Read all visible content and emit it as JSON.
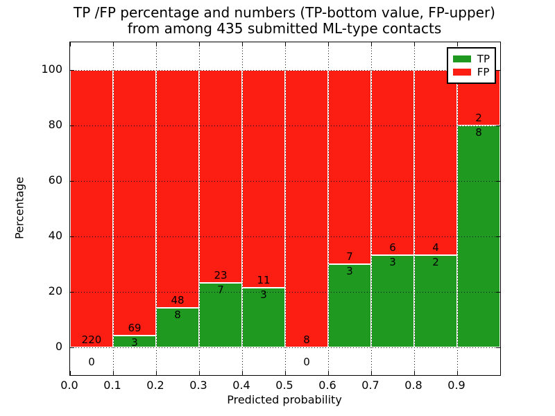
{
  "figure": {
    "title_line1": "TP /FP percentage and numbers (TP-bottom value, FP-upper)",
    "title_line2": "from among 435 submitted ML-type contacts",
    "xlabel": "Predicted probability",
    "ylabel": "Percentage"
  },
  "legend": {
    "items": [
      {
        "label": "TP",
        "color": "#1f991f"
      },
      {
        "label": "FP",
        "color": "#fc1d13"
      }
    ]
  },
  "colors": {
    "tp": "#1f991f",
    "fp": "#fc1d13",
    "grid": "#000000",
    "background": "#ffffff"
  },
  "chart_data": {
    "type": "bar",
    "stacked": true,
    "title": "TP /FP percentage and numbers (TP-bottom value, FP-upper) from among 435 submitted ML-type contacts",
    "xlabel": "Predicted probability",
    "ylabel": "Percentage",
    "xlim": [
      0.0,
      1.0
    ],
    "ylim": [
      -10,
      110
    ],
    "x_ticks": [
      "0.0",
      "0.1",
      "0.2",
      "0.3",
      "0.4",
      "0.5",
      "0.6",
      "0.7",
      "0.8",
      "0.9"
    ],
    "y_ticks": [
      0,
      20,
      40,
      60,
      80,
      100
    ],
    "grid": "dotted, drawn over bars",
    "legend_position": "upper right",
    "total_contacts": 435,
    "series": [
      {
        "name": "TP",
        "values": [
          0.0,
          4.17,
          14.29,
          23.33,
          21.43,
          0.0,
          30.0,
          33.33,
          33.33,
          80.0
        ]
      },
      {
        "name": "FP",
        "values": [
          100.0,
          95.83,
          85.71,
          76.67,
          78.57,
          100.0,
          70.0,
          66.67,
          66.67,
          20.0
        ]
      }
    ],
    "bins": [
      {
        "x_start": 0.0,
        "x_end": 0.1,
        "tp_count": 0,
        "fp_count": 220,
        "tp_pct": 0.0
      },
      {
        "x_start": 0.1,
        "x_end": 0.2,
        "tp_count": 3,
        "fp_count": 69,
        "tp_pct": 4.17
      },
      {
        "x_start": 0.2,
        "x_end": 0.3,
        "tp_count": 8,
        "fp_count": 48,
        "tp_pct": 14.29
      },
      {
        "x_start": 0.3,
        "x_end": 0.4,
        "tp_count": 7,
        "fp_count": 23,
        "tp_pct": 23.33
      },
      {
        "x_start": 0.4,
        "x_end": 0.5,
        "tp_count": 3,
        "fp_count": 11,
        "tp_pct": 21.43
      },
      {
        "x_start": 0.5,
        "x_end": 0.6,
        "tp_count": 0,
        "fp_count": 8,
        "tp_pct": 0.0
      },
      {
        "x_start": 0.6,
        "x_end": 0.7,
        "tp_count": 3,
        "fp_count": 7,
        "tp_pct": 30.0
      },
      {
        "x_start": 0.7,
        "x_end": 0.8,
        "tp_count": 3,
        "fp_count": 6,
        "tp_pct": 33.33
      },
      {
        "x_start": 0.8,
        "x_end": 0.9,
        "tp_count": 2,
        "fp_count": 4,
        "tp_pct": 33.33
      },
      {
        "x_start": 0.9,
        "x_end": 1.0,
        "tp_count": 8,
        "fp_count": 2,
        "tp_pct": 80.0
      }
    ]
  }
}
